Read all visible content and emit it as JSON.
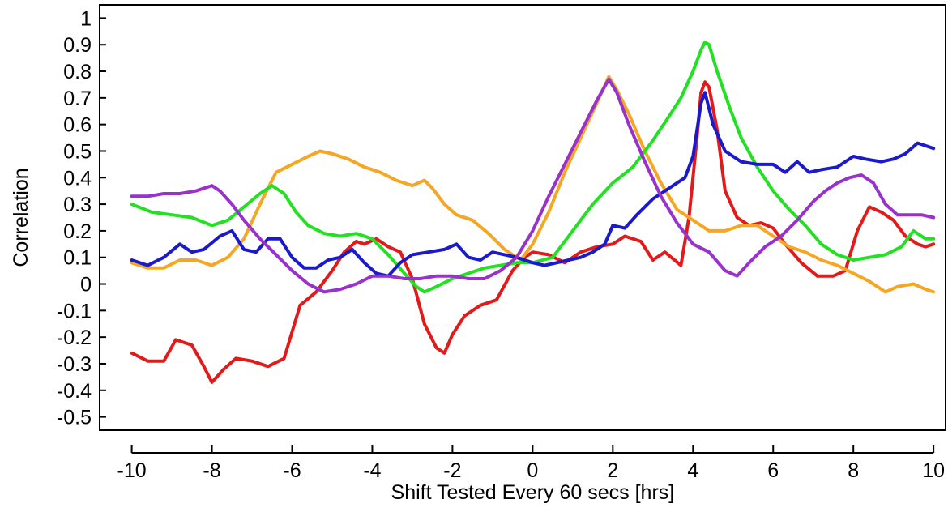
{
  "chart_data": {
    "type": "line",
    "title": "",
    "xlabel": "Shift Tested Every 60 secs [hrs]",
    "ylabel": "Correlation",
    "xlim": [
      -10.8,
      10.3
    ],
    "ylim": [
      -0.55,
      1.05
    ],
    "xticks": [
      -10,
      -8,
      -6,
      -4,
      -2,
      0,
      2,
      4,
      6,
      8,
      10
    ],
    "xtick_labels": [
      "-10",
      "-8",
      "-6",
      "-4",
      "-2",
      "0",
      "2",
      "4",
      "6",
      "8",
      "10"
    ],
    "yticks": [
      -0.5,
      -0.4,
      -0.3,
      -0.2,
      -0.1,
      0,
      0.1,
      0.2,
      0.3,
      0.4,
      0.5,
      0.6,
      0.7,
      0.8,
      0.9,
      1
    ],
    "ytick_labels": [
      "-0.5",
      "-0.4",
      "-0.3",
      "-0.2",
      "-0.1",
      "0",
      "0.1",
      "0.2",
      "0.3",
      "0.4",
      "0.5",
      "0.6",
      "0.7",
      "0.8",
      "0.9",
      "1"
    ],
    "grid": false,
    "legend": "none",
    "series": [
      {
        "color": "#e21a1a",
        "x": [
          -10,
          -9.6,
          -9.2,
          -8.9,
          -8.5,
          -8.2,
          -8.0,
          -7.7,
          -7.4,
          -7.0,
          -6.6,
          -6.2,
          -5.8,
          -5.4,
          -5.0,
          -4.7,
          -4.4,
          -4.2,
          -3.9,
          -3.6,
          -3.3,
          -3.0,
          -2.7,
          -2.4,
          -2.2,
          -2.0,
          -1.7,
          -1.3,
          -0.9,
          -0.5,
          -0.2,
          0,
          0.4,
          0.8,
          1.2,
          1.6,
          2.0,
          2.3,
          2.7,
          3.0,
          3.3,
          3.7,
          3.9,
          4.1,
          4.2,
          4.3,
          4.4,
          4.6,
          4.8,
          5.1,
          5.4,
          5.7,
          6.0,
          6.3,
          6.7,
          7.1,
          7.5,
          7.8,
          8.1,
          8.4,
          8.7,
          9.0,
          9.3,
          9.6,
          9.8,
          10.0
        ],
        "y": [
          -0.26,
          -0.29,
          -0.29,
          -0.21,
          -0.23,
          -0.31,
          -0.37,
          -0.32,
          -0.28,
          -0.29,
          -0.31,
          -0.28,
          -0.08,
          -0.03,
          0.05,
          0.12,
          0.16,
          0.15,
          0.17,
          0.14,
          0.12,
          0.02,
          -0.15,
          -0.24,
          -0.26,
          -0.19,
          -0.12,
          -0.08,
          -0.06,
          0.05,
          0.1,
          0.12,
          0.11,
          0.08,
          0.12,
          0.14,
          0.15,
          0.18,
          0.16,
          0.09,
          0.12,
          0.07,
          0.25,
          0.55,
          0.72,
          0.76,
          0.74,
          0.58,
          0.35,
          0.25,
          0.22,
          0.23,
          0.21,
          0.15,
          0.08,
          0.03,
          0.03,
          0.05,
          0.2,
          0.29,
          0.27,
          0.24,
          0.18,
          0.15,
          0.14,
          0.15
        ]
      },
      {
        "color": "#f5a623",
        "x": [
          -10,
          -9.6,
          -9.2,
          -8.8,
          -8.4,
          -8.0,
          -7.6,
          -7.2,
          -6.8,
          -6.4,
          -6.0,
          -5.6,
          -5.3,
          -5.0,
          -4.6,
          -4.2,
          -3.8,
          -3.4,
          -3.0,
          -2.7,
          -2.5,
          -2.2,
          -1.9,
          -1.5,
          -1.1,
          -0.7,
          -0.3,
          0,
          0.4,
          0.8,
          1.2,
          1.6,
          1.9,
          2.1,
          2.4,
          2.8,
          3.2,
          3.6,
          4.0,
          4.4,
          4.8,
          5.2,
          5.6,
          6.0,
          6.4,
          6.8,
          7.2,
          7.6,
          8.0,
          8.4,
          8.8,
          9.1,
          9.5,
          9.8,
          10.0
        ],
        "y": [
          0.08,
          0.06,
          0.06,
          0.09,
          0.09,
          0.07,
          0.1,
          0.17,
          0.3,
          0.42,
          0.45,
          0.48,
          0.5,
          0.49,
          0.47,
          0.44,
          0.42,
          0.39,
          0.37,
          0.39,
          0.36,
          0.3,
          0.26,
          0.24,
          0.19,
          0.13,
          0.09,
          0.15,
          0.27,
          0.42,
          0.55,
          0.68,
          0.78,
          0.73,
          0.64,
          0.5,
          0.38,
          0.28,
          0.24,
          0.2,
          0.2,
          0.22,
          0.22,
          0.18,
          0.14,
          0.12,
          0.09,
          0.07,
          0.04,
          0.01,
          -0.03,
          -0.01,
          0,
          -0.02,
          -0.03
        ]
      },
      {
        "color": "#22e022",
        "x": [
          -10,
          -9.5,
          -9.0,
          -8.5,
          -8.0,
          -7.6,
          -7.2,
          -6.8,
          -6.5,
          -6.2,
          -5.9,
          -5.6,
          -5.2,
          -4.8,
          -4.4,
          -4.0,
          -3.6,
          -3.2,
          -2.9,
          -2.7,
          -2.4,
          -2.0,
          -1.6,
          -1.2,
          -0.8,
          -0.4,
          0,
          0.5,
          1.0,
          1.5,
          2.0,
          2.5,
          3.0,
          3.4,
          3.7,
          4.0,
          4.2,
          4.3,
          4.4,
          4.6,
          4.9,
          5.2,
          5.6,
          6.0,
          6.4,
          6.8,
          7.2,
          7.6,
          8.0,
          8.4,
          8.8,
          9.2,
          9.5,
          9.8,
          10.0
        ],
        "y": [
          0.3,
          0.27,
          0.26,
          0.25,
          0.22,
          0.24,
          0.29,
          0.34,
          0.37,
          0.34,
          0.27,
          0.22,
          0.19,
          0.18,
          0.19,
          0.17,
          0.11,
          0.04,
          -0.01,
          -0.03,
          -0.01,
          0.02,
          0.04,
          0.06,
          0.07,
          0.08,
          0.08,
          0.1,
          0.2,
          0.3,
          0.38,
          0.44,
          0.54,
          0.63,
          0.7,
          0.8,
          0.88,
          0.91,
          0.9,
          0.8,
          0.67,
          0.55,
          0.44,
          0.35,
          0.28,
          0.22,
          0.15,
          0.11,
          0.09,
          0.1,
          0.11,
          0.14,
          0.2,
          0.17,
          0.17
        ]
      },
      {
        "color": "#1a1acc",
        "x": [
          -10,
          -9.6,
          -9.2,
          -8.8,
          -8.5,
          -8.2,
          -7.8,
          -7.5,
          -7.2,
          -6.9,
          -6.6,
          -6.3,
          -6.0,
          -5.7,
          -5.4,
          -5.1,
          -4.8,
          -4.5,
          -4.2,
          -3.9,
          -3.6,
          -3.3,
          -3.0,
          -2.6,
          -2.2,
          -1.9,
          -1.6,
          -1.3,
          -1.0,
          -0.7,
          -0.4,
          0,
          0.3,
          0.6,
          0.9,
          1.2,
          1.5,
          1.8,
          2.0,
          2.3,
          2.6,
          3.0,
          3.4,
          3.8,
          4.0,
          4.2,
          4.3,
          4.5,
          4.8,
          5.2,
          5.6,
          6.0,
          6.3,
          6.6,
          6.9,
          7.2,
          7.6,
          8.0,
          8.3,
          8.7,
          9.0,
          9.3,
          9.6,
          9.8,
          10.0
        ],
        "y": [
          0.09,
          0.07,
          0.1,
          0.15,
          0.12,
          0.13,
          0.18,
          0.2,
          0.13,
          0.12,
          0.17,
          0.17,
          0.1,
          0.06,
          0.06,
          0.09,
          0.1,
          0.13,
          0.08,
          0.04,
          0.03,
          0.08,
          0.11,
          0.12,
          0.13,
          0.15,
          0.1,
          0.09,
          0.12,
          0.11,
          0.1,
          0.08,
          0.07,
          0.08,
          0.09,
          0.1,
          0.12,
          0.15,
          0.22,
          0.21,
          0.26,
          0.32,
          0.36,
          0.4,
          0.48,
          0.68,
          0.72,
          0.6,
          0.5,
          0.46,
          0.45,
          0.45,
          0.42,
          0.46,
          0.42,
          0.43,
          0.44,
          0.48,
          0.47,
          0.46,
          0.47,
          0.49,
          0.53,
          0.52,
          0.51
        ]
      },
      {
        "color": "#9932cc",
        "x": [
          -10,
          -9.6,
          -9.2,
          -8.8,
          -8.4,
          -8.0,
          -7.8,
          -7.5,
          -7.2,
          -6.8,
          -6.4,
          -6.0,
          -5.6,
          -5.2,
          -4.8,
          -4.4,
          -4.0,
          -3.6,
          -3.2,
          -2.8,
          -2.4,
          -2.0,
          -1.6,
          -1.2,
          -0.8,
          -0.4,
          0,
          0.4,
          0.8,
          1.2,
          1.6,
          1.9,
          2.1,
          2.4,
          2.8,
          3.2,
          3.6,
          4.0,
          4.4,
          4.8,
          5.1,
          5.4,
          5.8,
          6.2,
          6.6,
          7.0,
          7.3,
          7.6,
          7.9,
          8.2,
          8.5,
          8.8,
          9.1,
          9.4,
          9.7,
          10.0
        ],
        "y": [
          0.33,
          0.33,
          0.34,
          0.34,
          0.35,
          0.37,
          0.35,
          0.3,
          0.24,
          0.17,
          0.11,
          0.05,
          0,
          -0.03,
          -0.02,
          0,
          0.03,
          0.03,
          0.02,
          0.02,
          0.03,
          0.03,
          0.02,
          0.02,
          0.05,
          0.1,
          0.2,
          0.33,
          0.45,
          0.57,
          0.69,
          0.77,
          0.72,
          0.6,
          0.46,
          0.33,
          0.23,
          0.15,
          0.12,
          0.05,
          0.03,
          0.08,
          0.14,
          0.18,
          0.24,
          0.31,
          0.35,
          0.38,
          0.4,
          0.41,
          0.38,
          0.3,
          0.26,
          0.26,
          0.26,
          0.25
        ]
      }
    ]
  }
}
